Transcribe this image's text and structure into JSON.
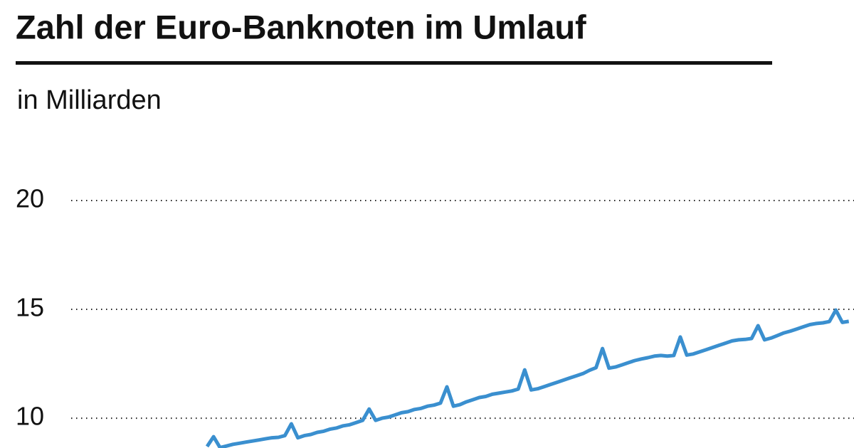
{
  "chart_data": {
    "type": "line",
    "title": "Zahl der Euro-Banknoten im Umlauf",
    "subtitle": "in Milliarden",
    "categories": [
      null,
      null,
      null,
      null,
      null,
      null,
      null,
      null,
      null,
      null,
      null,
      null,
      null,
      null,
      null,
      null,
      null,
      null,
      null,
      null,
      null,
      null,
      null,
      null,
      null,
      null,
      null,
      null,
      null,
      null,
      null,
      null,
      null,
      null,
      null,
      null,
      null,
      null,
      null,
      null,
      null,
      null,
      null,
      null,
      null,
      null,
      null,
      null,
      null,
      null,
      null,
      null,
      null,
      null,
      null,
      null,
      null,
      null,
      null,
      null,
      null,
      null,
      null,
      null,
      null,
      null,
      null,
      null,
      null,
      null,
      null,
      null,
      null,
      null,
      null,
      null,
      null,
      null,
      null,
      null,
      null,
      null,
      null,
      null,
      null,
      null,
      null,
      null,
      null,
      null,
      null,
      null,
      null,
      null,
      null,
      null,
      null,
      null,
      null,
      null
    ],
    "series": [
      {
        "color": "#3a8fcf",
        "values": [
          8.7,
          9.15,
          8.65,
          8.72,
          8.8,
          8.85,
          8.9,
          8.95,
          9.0,
          9.05,
          9.1,
          9.12,
          9.2,
          9.74,
          9.1,
          9.2,
          9.25,
          9.35,
          9.4,
          9.5,
          9.55,
          9.65,
          9.7,
          9.8,
          9.9,
          10.42,
          9.9,
          10.0,
          10.05,
          10.15,
          10.25,
          10.3,
          10.4,
          10.45,
          10.55,
          10.6,
          10.69,
          11.44,
          10.55,
          10.62,
          10.75,
          10.85,
          10.95,
          11.0,
          11.1,
          11.15,
          11.2,
          11.25,
          11.34,
          12.22,
          11.3,
          11.35,
          11.45,
          11.55,
          11.65,
          11.75,
          11.85,
          11.95,
          12.05,
          12.2,
          12.32,
          13.2,
          12.3,
          12.35,
          12.45,
          12.55,
          12.65,
          12.72,
          12.78,
          12.85,
          12.88,
          12.85,
          12.88,
          13.73,
          12.9,
          12.95,
          13.05,
          13.15,
          13.25,
          13.35,
          13.45,
          13.55,
          13.6,
          13.62,
          13.66,
          14.25,
          13.6,
          13.68,
          13.8,
          13.92,
          14.0,
          14.1,
          14.2,
          14.3,
          14.35,
          14.38,
          14.44,
          14.97,
          14.4,
          14.45
        ]
      }
    ],
    "ylim": [
      8.63,
      20
    ],
    "yticks": [
      10,
      15,
      20
    ],
    "grid": true
  }
}
